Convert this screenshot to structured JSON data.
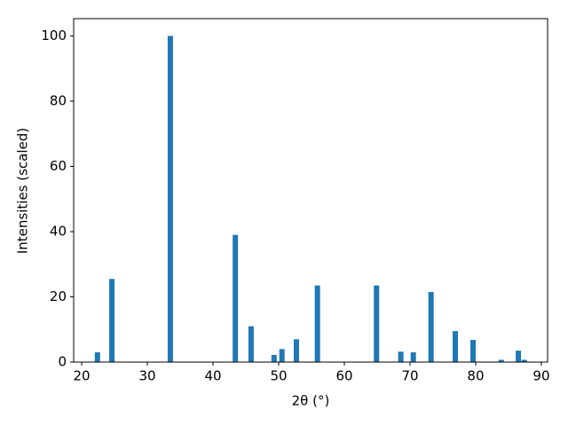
{
  "chart_data": {
    "type": "bar",
    "x": [
      22.4,
      24.6,
      33.5,
      43.4,
      45.8,
      49.3,
      50.5,
      52.7,
      55.9,
      64.9,
      68.6,
      70.5,
      73.2,
      76.9,
      79.6,
      83.9,
      86.5,
      87.4
    ],
    "values": [
      3,
      25.5,
      100,
      39,
      11,
      2.2,
      4,
      7,
      23.5,
      23.5,
      3.2,
      3,
      21.5,
      9.5,
      6.8,
      0.7,
      3.5,
      0.7
    ],
    "color": "#1f77b4",
    "xlabel": "2θ (°)",
    "ylabel": "Intensities (scaled)",
    "xlim": [
      18.78,
      90.95
    ],
    "xticks": [
      20,
      30,
      40,
      50,
      60,
      70,
      80,
      90
    ],
    "ylim": [
      0,
      105.3
    ],
    "yticks": [
      0,
      20,
      40,
      60,
      80,
      100
    ],
    "grid": false
  }
}
